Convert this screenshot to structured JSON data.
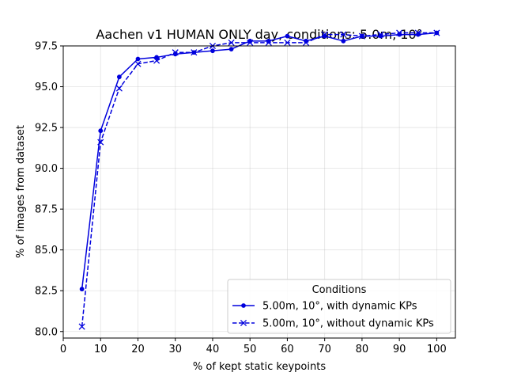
{
  "chart_data": {
    "type": "line",
    "title": "Aachen v1 HUMAN ONLY day, conditions: 5.0m, 10°",
    "xlabel": "% of kept static keypoints",
    "ylabel": "% of images from dataset",
    "xlim": [
      0,
      105
    ],
    "ylim": [
      79.6,
      97.5
    ],
    "xticks": [
      0,
      10,
      20,
      30,
      40,
      50,
      60,
      70,
      80,
      90,
      100
    ],
    "yticks": [
      80.0,
      82.5,
      85.0,
      87.5,
      90.0,
      92.5,
      95.0,
      97.5
    ],
    "ytick_labels": [
      "80.0",
      "82.5",
      "85.0",
      "87.5",
      "90.0",
      "92.5",
      "95.0",
      "97.5"
    ],
    "grid": true,
    "legend": {
      "title": "Conditions",
      "placement": "lower right"
    },
    "x": [
      5,
      10,
      15,
      20,
      25,
      30,
      35,
      40,
      45,
      50,
      55,
      60,
      65,
      70,
      75,
      80,
      85,
      90,
      95,
      100
    ],
    "series": [
      {
        "name": "5.00m, 10°, with dynamic KPs",
        "color": "#0000dd",
        "line_style": "solid",
        "marker": "dot",
        "values": [
          82.6,
          92.3,
          95.6,
          96.7,
          96.8,
          97.0,
          97.1,
          97.2,
          97.3,
          97.8,
          97.8,
          98.1,
          97.8,
          98.1,
          97.8,
          98.1,
          98.1,
          98.2,
          98.2,
          98.3
        ]
      },
      {
        "name": "5.00m, 10°, without dynamic KPs",
        "color": "#0000dd",
        "line_style": "dashed",
        "marker": "x",
        "values": [
          80.3,
          91.6,
          94.9,
          96.4,
          96.6,
          97.1,
          97.1,
          97.5,
          97.7,
          97.7,
          97.7,
          97.7,
          97.7,
          98.2,
          98.2,
          98.1,
          98.2,
          98.3,
          98.3,
          98.3
        ]
      }
    ]
  }
}
